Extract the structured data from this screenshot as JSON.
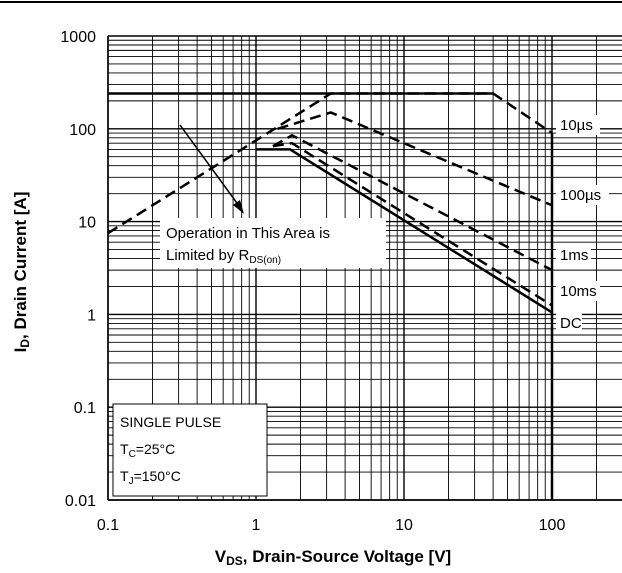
{
  "chart_data": {
    "type": "line",
    "xlabel": {
      "main": "V",
      "sub": "DS",
      "rest": ", Drain-Source Voltage [V]"
    },
    "ylabel": {
      "main": "I",
      "sub": "D",
      "rest": ", Drain Current [A]"
    },
    "xscale": "log",
    "yscale": "log",
    "xlim": [
      0.1,
      100
    ],
    "ylim": [
      0.01,
      1000
    ],
    "x_ticks": [
      "0.1",
      "1",
      "10",
      "100"
    ],
    "y_ticks": [
      "0.01",
      "0.1",
      "1",
      "10",
      "100",
      "1000"
    ],
    "grid": true,
    "series": [
      {
        "name": "10µs",
        "style": "dashed",
        "x": [
          0.1,
          3.2,
          6.3,
          40,
          100
        ],
        "y": [
          7.5,
          240,
          240,
          240,
          90
        ]
      },
      {
        "name": "100µs",
        "style": "dashed",
        "x": [
          1.4,
          3.2,
          100
        ],
        "y": [
          100,
          150,
          15
        ]
      },
      {
        "name": "1ms",
        "style": "dashed",
        "x": [
          1.3,
          1.75,
          100
        ],
        "y": [
          65,
          85,
          3
        ]
      },
      {
        "name": "10ms",
        "style": "dashed",
        "x": [
          1.3,
          1.75,
          100
        ],
        "y": [
          65,
          70,
          1.25
        ]
      },
      {
        "name": "DC",
        "style": "solid",
        "x": [
          1.0,
          1.7,
          100
        ],
        "y": [
          60,
          60,
          1.05
        ]
      }
    ],
    "limit_lines": [
      {
        "style": "solid",
        "x": [
          0.1,
          40
        ],
        "y": [
          240,
          240
        ]
      },
      {
        "style": "solid",
        "x": [
          100,
          100
        ],
        "y": [
          0.01,
          90
        ]
      }
    ],
    "annotations": {
      "area_note": {
        "line1": "Operation in This Area is",
        "line2_main": "Limited by R",
        "line2_sub": "DS(on)"
      },
      "conditions": [
        {
          "main": "SINGLE PULSE",
          "sub": "",
          "rest": ""
        },
        {
          "main": "T",
          "sub": "C",
          "rest": "=25°C"
        },
        {
          "main": "T",
          "sub": "J",
          "rest": "=150°C"
        }
      ]
    }
  }
}
